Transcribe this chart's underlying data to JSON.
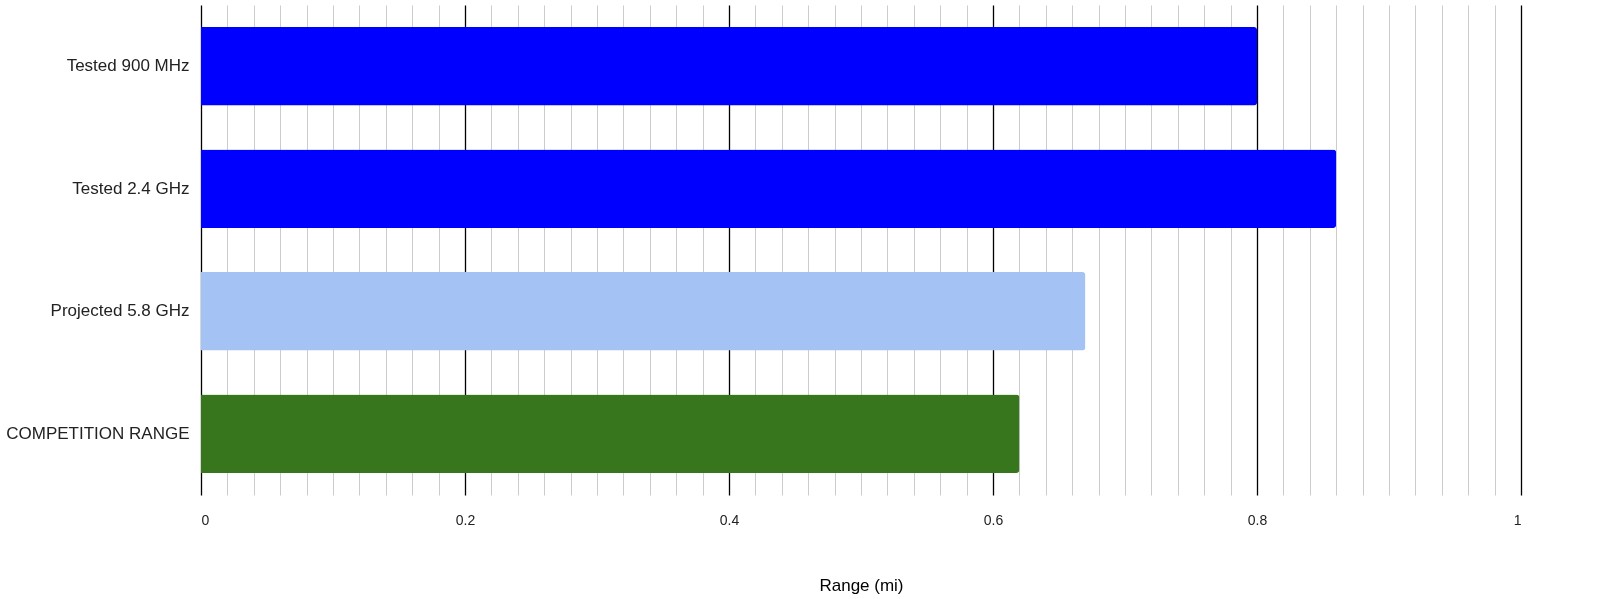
{
  "chart_data": {
    "type": "bar",
    "orientation": "horizontal",
    "categories": [
      "Tested 900 MHz",
      "Tested 2.4 GHz",
      "Projected 5.8 GHz",
      "COMPETITION RANGE"
    ],
    "values": [
      0.8,
      0.86,
      0.67,
      0.62
    ],
    "colors": [
      "#0000ff",
      "#0000ff",
      "#a4c2f4",
      "#38761d"
    ],
    "xlabel": "Range (mi)",
    "xlim": [
      0,
      1
    ],
    "xticks": [
      0,
      {
        "value": 0.02,
        "label": null
      },
      {
        "value": 0.04,
        "label": null
      },
      {
        "value": 0.06,
        "label": null
      },
      {
        "value": 0.08,
        "label": null
      },
      {
        "value": 0.1,
        "label": null
      },
      {
        "value": 0.12,
        "label": null
      },
      {
        "value": 0.14,
        "label": null
      },
      {
        "value": 0.16,
        "label": null
      },
      {
        "value": 0.18,
        "label": null
      },
      0.2,
      {
        "value": 0.22,
        "label": null
      },
      {
        "value": 0.24,
        "label": null
      },
      {
        "value": 0.26,
        "label": null
      },
      {
        "value": 0.28,
        "label": null
      },
      {
        "value": 0.3,
        "label": null
      },
      {
        "value": 0.32,
        "label": null
      },
      {
        "value": 0.34,
        "label": null
      },
      {
        "value": 0.36,
        "label": null
      },
      {
        "value": 0.38,
        "label": null
      },
      0.4,
      {
        "value": 0.42,
        "label": null
      },
      {
        "value": 0.44,
        "label": null
      },
      {
        "value": 0.46,
        "label": null
      },
      {
        "value": 0.48,
        "label": null
      },
      {
        "value": 0.5,
        "label": null
      },
      {
        "value": 0.52,
        "label": null
      },
      {
        "value": 0.54,
        "label": null
      },
      {
        "value": 0.56,
        "label": null
      },
      {
        "value": 0.58,
        "label": null
      },
      0.6,
      {
        "value": 0.62,
        "label": null
      },
      {
        "value": 0.64,
        "label": null
      },
      {
        "value": 0.66,
        "label": null
      },
      {
        "value": 0.68,
        "label": null
      },
      {
        "value": 0.7,
        "label": null
      },
      {
        "value": 0.72,
        "label": null
      },
      {
        "value": 0.74,
        "label": null
      },
      {
        "value": 0.76,
        "label": null
      },
      {
        "value": 0.78,
        "label": null
      },
      0.8,
      {
        "value": 0.82,
        "label": null
      },
      {
        "value": 0.84,
        "label": null
      },
      {
        "value": 0.86,
        "label": null
      },
      {
        "value": 0.88,
        "label": null
      },
      {
        "value": 0.9,
        "label": null
      },
      {
        "value": 0.92,
        "label": null
      },
      {
        "value": 0.94,
        "label": null
      },
      {
        "value": 0.96,
        "label": null
      },
      {
        "value": 0.98,
        "label": null
      },
      1
    ],
    "grid": "x"
  }
}
